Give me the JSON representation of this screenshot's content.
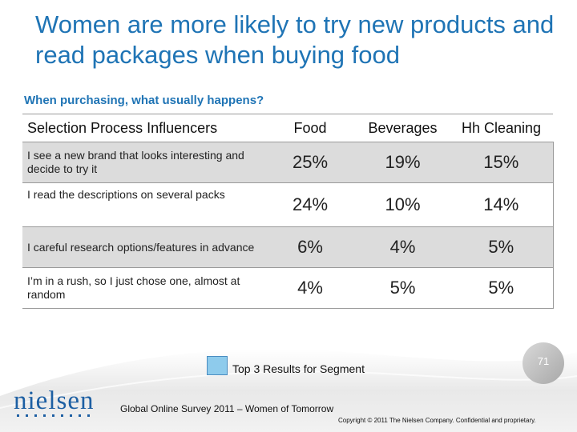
{
  "slide": {
    "title": "Women are more likely to try new products and read packages when buying food",
    "subtitle": "When purchasing, what usually happens?"
  },
  "table": {
    "headers": [
      "Selection Process Influencers",
      "Food",
      "Beverages",
      "Hh Cleaning"
    ],
    "rows": [
      {
        "label": "I see a new brand that looks interesting and decide to try it",
        "values": [
          "25%",
          "19%",
          "15%"
        ]
      },
      {
        "label": "I read the descriptions on several packs",
        "values": [
          "24%",
          "10%",
          "14%"
        ]
      },
      {
        "label": "I careful research options/features in advance",
        "values": [
          "6%",
          "4%",
          "5%"
        ]
      },
      {
        "label": "I’m in a rush, so I just chose one, almost at random",
        "values": [
          "4%",
          "5%",
          "5%"
        ]
      }
    ]
  },
  "legend": {
    "label": "Top 3 Results for Segment",
    "swatch_color": "#8ecbec"
  },
  "footer": {
    "page_number": "71",
    "logo_text": "nielsen",
    "survey_text": "Global Online Survey 2011 – Women of Tomorrow",
    "copyright": "Copyright © 2011 The Nielsen Company. Confidential and proprietary."
  },
  "colors": {
    "title": "#1f74b5",
    "brand": "#1d5fa3",
    "row_shade": "#dcdcdc"
  }
}
